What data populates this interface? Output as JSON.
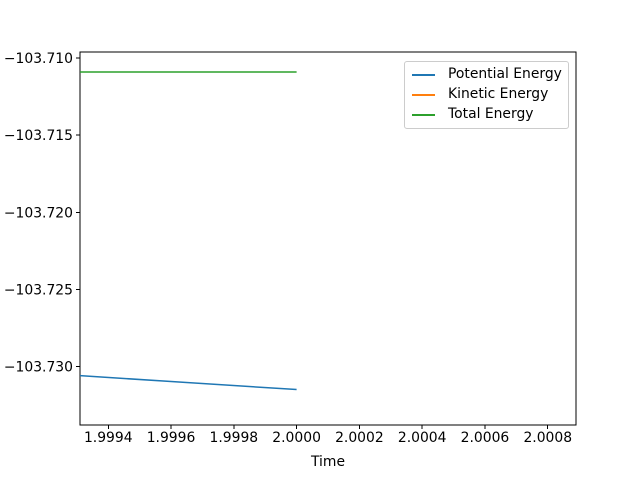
{
  "chart_data": {
    "type": "line",
    "title": "",
    "xlabel": "Time",
    "ylabel": "",
    "xlim": [
      1.99931,
      2.00089
    ],
    "ylim": [
      -103.7338,
      -103.7096
    ],
    "grid": false,
    "legend_position": "upper right",
    "xticks": {
      "values": [
        1.9994,
        1.9996,
        1.9998,
        2.0,
        2.0002,
        2.0004,
        2.0006,
        2.0008
      ],
      "labels": [
        "1.9994",
        "1.9996",
        "1.9998",
        "2.0000",
        "2.0002",
        "2.0004",
        "2.0006",
        "2.0008"
      ]
    },
    "yticks": {
      "values": [
        -103.71,
        -103.715,
        -103.72,
        -103.725,
        -103.73
      ],
      "labels": [
        "−103.710",
        "−103.715",
        "−103.720",
        "−103.725",
        "−103.730"
      ]
    },
    "series": [
      {
        "name": "Potential Energy",
        "color": "#1f77b4",
        "x": [
          1.99931,
          2.0
        ],
        "y": [
          -103.7306,
          -103.7315
        ]
      },
      {
        "name": "Kinetic Energy",
        "color": "#ff7f0e",
        "x": [],
        "y": []
      },
      {
        "name": "Total Energy",
        "color": "#2ca02c",
        "x": [
          1.99931,
          2.0
        ],
        "y": [
          -103.7109,
          -103.7109
        ]
      }
    ]
  },
  "colors": {
    "spine": "#000000",
    "text": "#000000",
    "legend_border": "#cccccc",
    "background": "#ffffff"
  }
}
